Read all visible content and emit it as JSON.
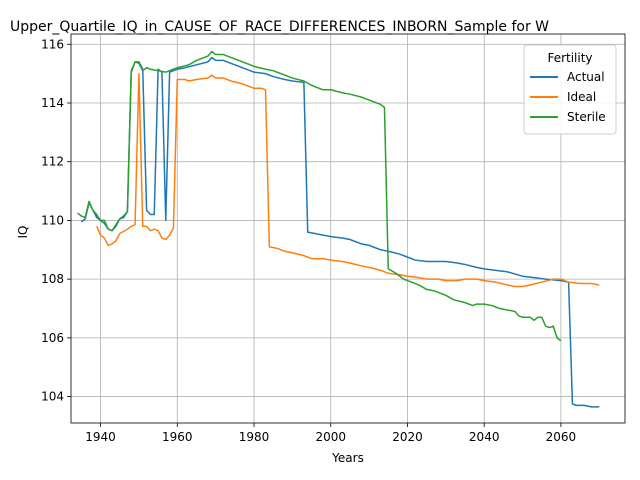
{
  "chart_data": {
    "type": "line",
    "title": "Upper_Quartile_IQ_in_CAUSE_OF_RACE_DIFFERENCES_INBORN_Sample for W",
    "xlabel": "Years",
    "ylabel": "IQ",
    "xlim": [
      1932.3,
      2076.7
    ],
    "ylim": [
      103.1,
      116.35
    ],
    "xticks": [
      1940,
      1960,
      1980,
      2000,
      2020,
      2040,
      2060
    ],
    "yticks": [
      104,
      106,
      108,
      110,
      112,
      114,
      116
    ],
    "grid": true,
    "legend": {
      "title": "Fertility",
      "placement": "top-right"
    },
    "series": [
      {
        "name": "Actual",
        "color": "#1f77b4",
        "points": [
          [
            1935,
            109.95
          ],
          [
            1936,
            110.05
          ],
          [
            1937,
            110.6
          ],
          [
            1938,
            110.35
          ],
          [
            1939,
            110.1
          ],
          [
            1940,
            110.0
          ],
          [
            1941,
            109.9
          ],
          [
            1942,
            109.7
          ],
          [
            1943,
            109.65
          ],
          [
            1944,
            109.8
          ],
          [
            1945,
            110.05
          ],
          [
            1946,
            110.1
          ],
          [
            1947,
            110.3
          ],
          [
            1948,
            115.05
          ],
          [
            1949,
            115.4
          ],
          [
            1950,
            115.4
          ],
          [
            1951,
            115.15
          ],
          [
            1952,
            110.35
          ],
          [
            1953,
            110.2
          ],
          [
            1954,
            110.2
          ],
          [
            1955,
            115.15
          ],
          [
            1956,
            115.05
          ],
          [
            1957,
            110.0
          ],
          [
            1958,
            115.05
          ],
          [
            1959,
            115.1
          ],
          [
            1960,
            115.15
          ],
          [
            1962,
            115.2
          ],
          [
            1965,
            115.3
          ],
          [
            1968,
            115.4
          ],
          [
            1969,
            115.55
          ],
          [
            1970,
            115.45
          ],
          [
            1972,
            115.45
          ],
          [
            1975,
            115.3
          ],
          [
            1978,
            115.15
          ],
          [
            1980,
            115.05
          ],
          [
            1983,
            115.0
          ],
          [
            1985,
            114.9
          ],
          [
            1988,
            114.8
          ],
          [
            1990,
            114.75
          ],
          [
            1993,
            114.7
          ],
          [
            1994,
            109.6
          ],
          [
            1996,
            109.55
          ],
          [
            1998,
            109.5
          ],
          [
            2000,
            109.45
          ],
          [
            2003,
            109.4
          ],
          [
            2005,
            109.35
          ],
          [
            2008,
            109.2
          ],
          [
            2010,
            109.15
          ],
          [
            2013,
            109.0
          ],
          [
            2015,
            108.95
          ],
          [
            2018,
            108.85
          ],
          [
            2020,
            108.75
          ],
          [
            2022,
            108.65
          ],
          [
            2025,
            108.6
          ],
          [
            2030,
            108.6
          ],
          [
            2033,
            108.55
          ],
          [
            2035,
            108.5
          ],
          [
            2038,
            108.4
          ],
          [
            2040,
            108.35
          ],
          [
            2043,
            108.3
          ],
          [
            2046,
            108.25
          ],
          [
            2050,
            108.1
          ],
          [
            2053,
            108.05
          ],
          [
            2056,
            108.0
          ],
          [
            2060,
            107.95
          ],
          [
            2062,
            107.9
          ],
          [
            2063,
            103.75
          ],
          [
            2064,
            103.7
          ],
          [
            2066,
            103.7
          ],
          [
            2068,
            103.65
          ],
          [
            2070,
            103.65
          ]
        ]
      },
      {
        "name": "Ideal",
        "color": "#ff7f0e",
        "points": [
          [
            1939,
            109.8
          ],
          [
            1940,
            109.5
          ],
          [
            1941,
            109.4
          ],
          [
            1942,
            109.15
          ],
          [
            1943,
            109.2
          ],
          [
            1944,
            109.3
          ],
          [
            1945,
            109.55
          ],
          [
            1947,
            109.7
          ],
          [
            1948,
            109.8
          ],
          [
            1949,
            109.85
          ],
          [
            1950,
            115.0
          ],
          [
            1951,
            109.8
          ],
          [
            1952,
            109.8
          ],
          [
            1953,
            109.65
          ],
          [
            1954,
            109.7
          ],
          [
            1955,
            109.65
          ],
          [
            1956,
            109.4
          ],
          [
            1957,
            109.35
          ],
          [
            1958,
            109.5
          ],
          [
            1959,
            109.75
          ],
          [
            1960,
            114.8
          ],
          [
            1962,
            114.8
          ],
          [
            1963,
            114.75
          ],
          [
            1965,
            114.8
          ],
          [
            1968,
            114.85
          ],
          [
            1969,
            114.95
          ],
          [
            1970,
            114.85
          ],
          [
            1972,
            114.85
          ],
          [
            1974,
            114.75
          ],
          [
            1977,
            114.65
          ],
          [
            1979,
            114.55
          ],
          [
            1980,
            114.5
          ],
          [
            1982,
            114.5
          ],
          [
            1983,
            114.45
          ],
          [
            1984,
            109.1
          ],
          [
            1986,
            109.05
          ],
          [
            1988,
            108.95
          ],
          [
            1990,
            108.9
          ],
          [
            1993,
            108.8
          ],
          [
            1995,
            108.7
          ],
          [
            1998,
            108.7
          ],
          [
            2000,
            108.65
          ],
          [
            2003,
            108.6
          ],
          [
            2005,
            108.55
          ],
          [
            2008,
            108.45
          ],
          [
            2010,
            108.4
          ],
          [
            2013,
            108.3
          ],
          [
            2015,
            108.2
          ],
          [
            2018,
            108.15
          ],
          [
            2020,
            108.1
          ],
          [
            2023,
            108.05
          ],
          [
            2025,
            108.0
          ],
          [
            2028,
            108.0
          ],
          [
            2030,
            107.95
          ],
          [
            2033,
            107.95
          ],
          [
            2035,
            108.0
          ],
          [
            2038,
            108.0
          ],
          [
            2040,
            107.95
          ],
          [
            2043,
            107.9
          ],
          [
            2046,
            107.8
          ],
          [
            2048,
            107.75
          ],
          [
            2050,
            107.75
          ],
          [
            2052,
            107.8
          ],
          [
            2055,
            107.9
          ],
          [
            2058,
            108.0
          ],
          [
            2060,
            108.0
          ],
          [
            2062,
            107.9
          ],
          [
            2065,
            107.85
          ],
          [
            2068,
            107.85
          ],
          [
            2070,
            107.8
          ]
        ]
      },
      {
        "name": "Sterile",
        "color": "#2ca02c",
        "points": [
          [
            1934,
            110.25
          ],
          [
            1935,
            110.15
          ],
          [
            1936,
            110.1
          ],
          [
            1937,
            110.65
          ],
          [
            1938,
            110.35
          ],
          [
            1939,
            110.2
          ],
          [
            1940,
            110.0
          ],
          [
            1941,
            110.0
          ],
          [
            1942,
            109.7
          ],
          [
            1943,
            109.65
          ],
          [
            1944,
            109.85
          ],
          [
            1945,
            110.05
          ],
          [
            1946,
            110.15
          ],
          [
            1947,
            110.3
          ],
          [
            1948,
            115.1
          ],
          [
            1949,
            115.4
          ],
          [
            1950,
            115.35
          ],
          [
            1951,
            115.1
          ],
          [
            1952,
            115.2
          ],
          [
            1953,
            115.15
          ],
          [
            1955,
            115.1
          ],
          [
            1957,
            115.05
          ],
          [
            1958,
            115.1
          ],
          [
            1960,
            115.2
          ],
          [
            1963,
            115.3
          ],
          [
            1965,
            115.45
          ],
          [
            1968,
            115.6
          ],
          [
            1969,
            115.75
          ],
          [
            1970,
            115.65
          ],
          [
            1972,
            115.65
          ],
          [
            1975,
            115.5
          ],
          [
            1978,
            115.35
          ],
          [
            1980,
            115.25
          ],
          [
            1983,
            115.15
          ],
          [
            1985,
            115.1
          ],
          [
            1988,
            114.95
          ],
          [
            1990,
            114.85
          ],
          [
            1993,
            114.75
          ],
          [
            1995,
            114.6
          ],
          [
            1998,
            114.45
          ],
          [
            2000,
            114.45
          ],
          [
            2003,
            114.35
          ],
          [
            2005,
            114.3
          ],
          [
            2008,
            114.2
          ],
          [
            2010,
            114.1
          ],
          [
            2013,
            113.95
          ],
          [
            2014,
            113.85
          ],
          [
            2015,
            108.35
          ],
          [
            2017,
            108.2
          ],
          [
            2019,
            108.0
          ],
          [
            2020,
            107.95
          ],
          [
            2023,
            107.8
          ],
          [
            2025,
            107.65
          ],
          [
            2027,
            107.6
          ],
          [
            2030,
            107.45
          ],
          [
            2032,
            107.3
          ],
          [
            2035,
            107.2
          ],
          [
            2037,
            107.1
          ],
          [
            2038,
            107.15
          ],
          [
            2040,
            107.15
          ],
          [
            2042,
            107.1
          ],
          [
            2044,
            107.0
          ],
          [
            2046,
            106.95
          ],
          [
            2048,
            106.9
          ],
          [
            2049,
            106.75
          ],
          [
            2050,
            106.7
          ],
          [
            2052,
            106.7
          ],
          [
            2053,
            106.6
          ],
          [
            2054,
            106.7
          ],
          [
            2055,
            106.7
          ],
          [
            2056,
            106.4
          ],
          [
            2057,
            106.35
          ],
          [
            2058,
            106.4
          ],
          [
            2059,
            106.0
          ],
          [
            2060,
            105.9
          ]
        ]
      }
    ]
  }
}
